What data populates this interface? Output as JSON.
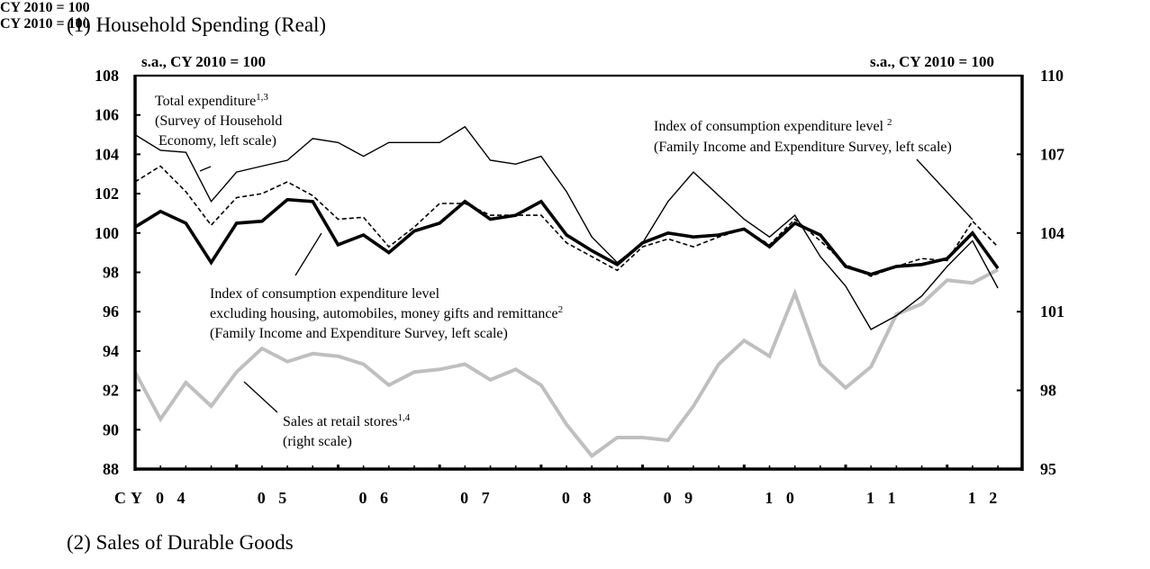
{
  "panel1_title": "(1) Household Spending (Real)",
  "panel2_title": "(2) Sales of Durable Goods",
  "panel2_unit_left": "CY 2010 = 100",
  "panel2_unit_right": "CY 2010 = 100",
  "chart_data": {
    "type": "line",
    "title": "(1) Household Spending (Real)",
    "ylabel_left": "s.a., CY 2010 = 100",
    "ylabel_right": "s.a., CY 2010 = 100",
    "xlabel": "",
    "ylim_left": [
      88,
      108
    ],
    "ylim_right": [
      95,
      110
    ],
    "yticks_left": [
      "108",
      "106",
      "104",
      "102",
      "100",
      "98",
      "96",
      "94",
      "92",
      "90",
      "88"
    ],
    "yticks_right": [
      "110",
      "107",
      "104",
      "101",
      "98",
      "95"
    ],
    "x_prefix": "CY",
    "x_year_labels": [
      "0 4",
      "0 5",
      "0 6",
      "0 7",
      "0 8",
      "0 9",
      "1 0",
      "1 1",
      "1 2"
    ],
    "x_frequency": "quarterly",
    "x_start": "2004Q1",
    "x_end": "2012Q3",
    "grid": false,
    "series": [
      {
        "name": "Total expenditure (Survey of Household Economy, left scale)",
        "axis": "left",
        "style": "thin-solid",
        "color": "#000000",
        "values": [
          105.0,
          104.2,
          104.1,
          101.6,
          103.1,
          103.4,
          103.7,
          104.8,
          104.6,
          103.9,
          104.6,
          104.6,
          104.6,
          105.4,
          103.7,
          103.5,
          103.9,
          102.1,
          99.8,
          98.5,
          99.5,
          101.6,
          103.1,
          101.9,
          100.7,
          99.8,
          100.9,
          98.8,
          97.3,
          95.1,
          95.8,
          96.8,
          98.3,
          99.6,
          97.2
        ]
      },
      {
        "name": "Index of consumption expenditure level (Family Income and Expenditure Survey, left scale)",
        "axis": "left",
        "style": "dashed",
        "color": "#000000",
        "values": [
          102.6,
          103.4,
          102.1,
          100.4,
          101.8,
          102.0,
          102.6,
          101.9,
          100.7,
          100.8,
          99.3,
          100.3,
          101.5,
          101.5,
          100.9,
          100.9,
          100.9,
          99.5,
          98.8,
          98.1,
          99.3,
          99.7,
          99.3,
          99.8,
          100.2,
          99.4,
          100.7,
          99.6,
          98.4,
          97.8,
          98.3,
          98.7,
          98.6,
          100.6,
          99.3
        ]
      },
      {
        "name": "Index of consumption expenditure level excluding housing, automobiles, money gifts and remittance (Family Income and Expenditure Survey, left scale)",
        "axis": "left",
        "style": "thick-solid",
        "color": "#000000",
        "values": [
          100.3,
          101.1,
          100.5,
          98.5,
          100.5,
          100.6,
          101.7,
          101.6,
          99.4,
          99.9,
          99.0,
          100.1,
          100.5,
          101.6,
          100.7,
          100.9,
          101.6,
          99.9,
          99.1,
          98.4,
          99.5,
          100.0,
          99.8,
          99.9,
          100.2,
          99.3,
          100.5,
          99.9,
          98.3,
          97.9,
          98.3,
          98.4,
          98.7,
          100.0,
          98.2
        ]
      },
      {
        "name": "Sales at retail stores (right scale)",
        "axis": "right",
        "style": "gray-thick",
        "color": "#bfbfbf",
        "values": [
          98.7,
          96.9,
          98.3,
          97.4,
          98.7,
          99.6,
          99.1,
          99.4,
          99.3,
          99.0,
          98.2,
          98.7,
          98.8,
          99.0,
          98.4,
          98.8,
          98.2,
          96.7,
          95.5,
          96.2,
          96.2,
          96.1,
          97.4,
          99.0,
          99.9,
          99.3,
          101.7,
          99.0,
          98.1,
          98.9,
          100.9,
          101.3,
          102.2,
          102.1,
          102.6
        ]
      }
    ],
    "annotations": [
      {
        "lines": [
          "Total expenditure",
          "(Survey of Household",
          " Economy, left scale)"
        ],
        "sup": "1,3"
      },
      {
        "lines": [
          "Index of consumption expenditure level ",
          "(Family Income and Expenditure Survey, left scale)"
        ],
        "sup": "2"
      },
      {
        "lines": [
          "Index of consumption expenditure level",
          "excluding housing, automobiles, money gifts and remittance",
          "(Family Income and Expenditure Survey, left scale)"
        ],
        "sup": "2"
      },
      {
        "lines": [
          "Sales at retail stores",
          "(right scale)"
        ],
        "sup": "1,4"
      }
    ]
  }
}
